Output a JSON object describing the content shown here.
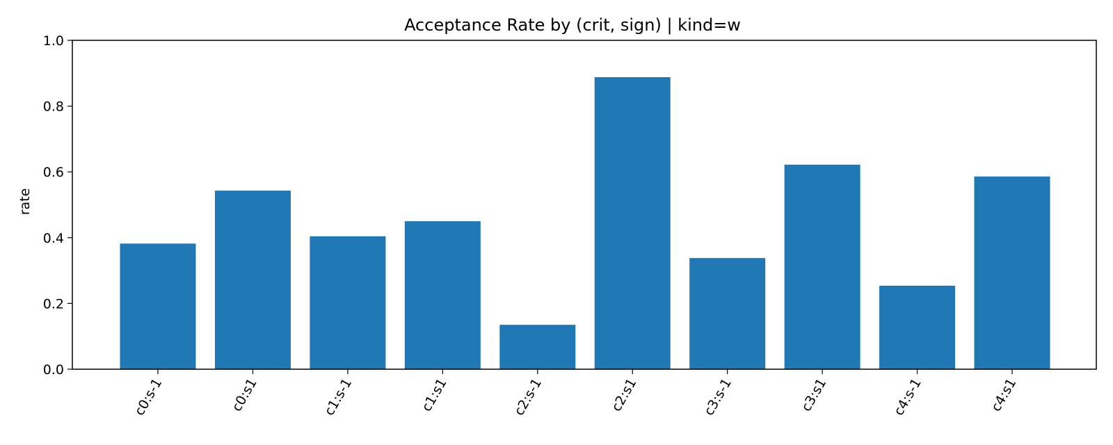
{
  "chart_data": {
    "type": "bar",
    "title": "Acceptance Rate by (crit, sign) | kind=w",
    "xlabel": "",
    "ylabel": "rate",
    "ylim": [
      0,
      1.0
    ],
    "yticks": [
      "0.0",
      "0.2",
      "0.4",
      "0.6",
      "0.8",
      "1.0"
    ],
    "categories": [
      "c0:s-1",
      "c0:s1",
      "c1:s-1",
      "c1:s1",
      "c2:s-1",
      "c2:s1",
      "c3:s-1",
      "c3:s1",
      "c4:s-1",
      "c4:s1"
    ],
    "values": [
      0.382,
      0.543,
      0.404,
      0.45,
      0.135,
      0.888,
      0.338,
      0.622,
      0.254,
      0.586
    ],
    "bar_color": "#1f77b4",
    "grid": false,
    "legend": "none"
  }
}
